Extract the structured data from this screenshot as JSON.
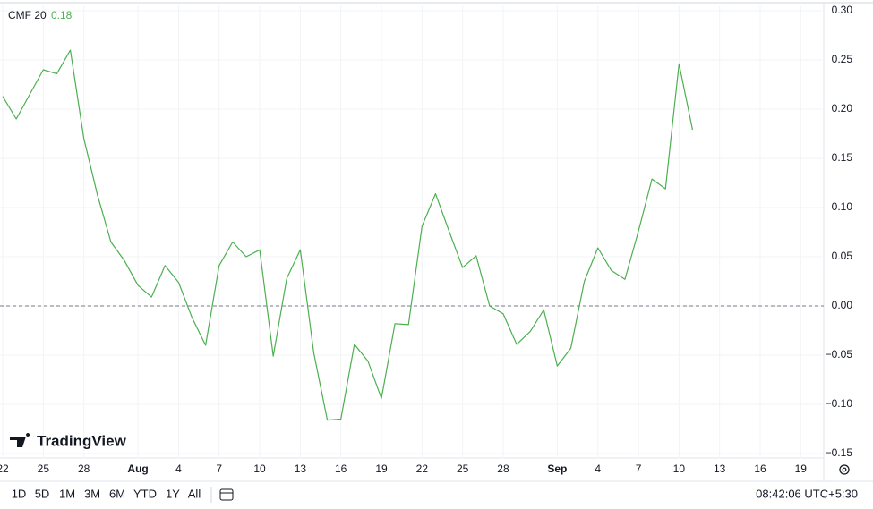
{
  "chart_data": {
    "type": "line",
    "legend": {
      "name": "CMF 20",
      "value": 0.18
    },
    "x": [
      0,
      1,
      2,
      3,
      4,
      5,
      6,
      7,
      8,
      9,
      10,
      11,
      12,
      13,
      14,
      15,
      16,
      17,
      18,
      19,
      20,
      21,
      22,
      23,
      24,
      25,
      26,
      27,
      28,
      29,
      30,
      31,
      32,
      33,
      34,
      35,
      36,
      37,
      38,
      39,
      40,
      41,
      42,
      43,
      44,
      45,
      46,
      47,
      48,
      49,
      50,
      51
    ],
    "series": [
      {
        "name": "CMF 20",
        "color": "#4caf50",
        "values": [
          0.213,
          0.19,
          0.215,
          0.24,
          0.236,
          0.26,
          0.17,
          0.113,
          0.065,
          0.046,
          0.021,
          0.009,
          0.041,
          0.024,
          -0.012,
          -0.04,
          0.041,
          0.065,
          0.05,
          0.057,
          -0.051,
          0.028,
          0.057,
          -0.048,
          -0.116,
          -0.115,
          -0.039,
          -0.056,
          -0.094,
          -0.018,
          -0.019,
          0.081,
          0.114,
          0.076,
          0.039,
          0.051,
          0.0,
          -0.008,
          -0.039,
          -0.026,
          -0.004,
          -0.061,
          -0.043,
          0.025,
          0.059,
          0.036,
          0.027,
          0.076,
          0.129,
          0.119,
          0.246,
          0.179
        ]
      }
    ],
    "xlim": [
      -0.2,
      60.7
    ],
    "xticks": [
      {
        "value": 0,
        "label": "22"
      },
      {
        "value": 3,
        "label": "25"
      },
      {
        "value": 6,
        "label": "28"
      },
      {
        "value": 10,
        "label": "Aug"
      },
      {
        "value": 13,
        "label": "4"
      },
      {
        "value": 16,
        "label": "7"
      },
      {
        "value": 19,
        "label": "10"
      },
      {
        "value": 22,
        "label": "13"
      },
      {
        "value": 25,
        "label": "16"
      },
      {
        "value": 28,
        "label": "19"
      },
      {
        "value": 31,
        "label": "22"
      },
      {
        "value": 34,
        "label": "25"
      },
      {
        "value": 37,
        "label": "28"
      },
      {
        "value": 41,
        "label": "Sep"
      },
      {
        "value": 44,
        "label": "4"
      },
      {
        "value": 47,
        "label": "7"
      },
      {
        "value": 50,
        "label": "10"
      },
      {
        "value": 53,
        "label": "13"
      },
      {
        "value": 56,
        "label": "16"
      },
      {
        "value": 59,
        "label": "19"
      }
    ],
    "ylim": [
      -0.155,
      0.305
    ],
    "yticks": [
      {
        "value": 0.3,
        "label": "0.30"
      },
      {
        "value": 0.25,
        "label": "0.25"
      },
      {
        "value": 0.2,
        "label": "0.20"
      },
      {
        "value": 0.15,
        "label": "0.15"
      },
      {
        "value": 0.1,
        "label": "0.10"
      },
      {
        "value": 0.05,
        "label": "0.05"
      },
      {
        "value": 0,
        "label": "0.00"
      },
      {
        "value": -0.05,
        "label": "−0.05"
      },
      {
        "value": -0.1,
        "label": "−0.10"
      },
      {
        "value": -0.15,
        "label": "−0.15"
      }
    ],
    "grid": true,
    "reference_line": 0
  },
  "branding": "TradingView",
  "toolbar": {
    "ranges": [
      "1D",
      "5D",
      "1M",
      "3M",
      "6M",
      "YTD",
      "1Y",
      "All"
    ],
    "clock": "08:42:06 UTC+5:30"
  }
}
